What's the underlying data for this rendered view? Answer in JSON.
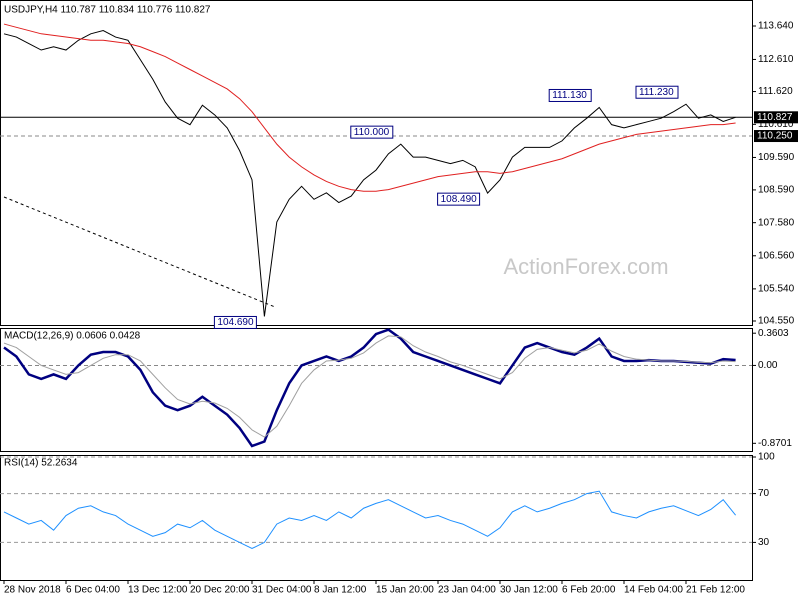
{
  "chart_data": [
    {
      "type": "line",
      "title": "USDJPY,H4 110.787 110.834 110.776 110.827",
      "watermark": "ActionForex.com",
      "ylim": [
        104.427,
        114.38
      ],
      "yticks": [
        {
          "value": 113.64,
          "label": "113.640"
        },
        {
          "value": 112.61,
          "label": "112.610"
        },
        {
          "value": 111.62,
          "label": "111.620"
        },
        {
          "value": 110.61,
          "label": "110.610"
        },
        {
          "value": 109.59,
          "label": "109.590"
        },
        {
          "value": 108.59,
          "label": "108.590"
        },
        {
          "value": 107.58,
          "label": "107.580"
        },
        {
          "value": 106.56,
          "label": "106.560"
        },
        {
          "value": 105.54,
          "label": "105.540"
        },
        {
          "value": 104.55,
          "label": "104.550"
        }
      ],
      "series": [
        {
          "name": "USDJPY",
          "color": "#000000",
          "values": [
            113.4,
            113.3,
            113.1,
            112.9,
            113.0,
            112.9,
            113.2,
            113.4,
            113.5,
            113.3,
            113.2,
            112.6,
            112.0,
            111.3,
            110.8,
            110.6,
            111.2,
            110.9,
            110.5,
            109.8,
            108.9,
            104.69,
            107.6,
            108.3,
            108.7,
            108.3,
            108.5,
            108.2,
            108.4,
            108.9,
            109.2,
            109.7,
            110.0,
            109.6,
            109.6,
            109.5,
            109.4,
            109.5,
            109.3,
            108.49,
            108.9,
            109.6,
            109.9,
            109.9,
            109.9,
            110.1,
            110.5,
            110.8,
            111.13,
            110.6,
            110.5,
            110.6,
            110.7,
            110.8,
            111.0,
            111.23,
            110.8,
            110.9,
            110.7,
            110.827
          ]
        },
        {
          "name": "MA",
          "color": "#e02020",
          "values": [
            113.7,
            113.6,
            113.5,
            113.4,
            113.35,
            113.3,
            113.25,
            113.2,
            113.2,
            113.15,
            113.1,
            113.0,
            112.85,
            112.7,
            112.5,
            112.3,
            112.1,
            111.9,
            111.7,
            111.4,
            111.0,
            110.5,
            110.0,
            109.6,
            109.3,
            109.05,
            108.85,
            108.7,
            108.6,
            108.55,
            108.55,
            108.6,
            108.7,
            108.8,
            108.9,
            109.0,
            109.05,
            109.1,
            109.15,
            109.15,
            109.1,
            109.15,
            109.25,
            109.35,
            109.45,
            109.55,
            109.7,
            109.85,
            110.0,
            110.1,
            110.2,
            110.3,
            110.35,
            110.4,
            110.45,
            110.5,
            110.55,
            110.6,
            110.6,
            110.65
          ]
        }
      ],
      "annotations": [
        {
          "index": 21,
          "value": 104.69,
          "label": "104.690"
        },
        {
          "index": 32,
          "value": 110.0,
          "label": "110.000"
        },
        {
          "index": 39,
          "value": 108.49,
          "label": "108.490"
        },
        {
          "index": 48,
          "value": 111.13,
          "label": "111.130"
        },
        {
          "index": 55,
          "value": 111.23,
          "label": "111.230"
        }
      ],
      "hlines": [
        {
          "value": 110.827,
          "label": "110.827",
          "style": "solid"
        },
        {
          "value": 110.25,
          "label": "110.250",
          "style": "dashed"
        }
      ]
    },
    {
      "type": "line",
      "title": "MACD(12,26,9) 0.0606 0.0428",
      "ylim": [
        -0.956,
        0.396
      ],
      "yticks": [
        0.3603,
        {
          "value": 0,
          "label": "0.00"
        },
        -0.8701
      ],
      "series": [
        {
          "name": "MACD",
          "color": "#000080",
          "values": [
            0.2,
            0.1,
            -0.1,
            -0.15,
            -0.1,
            -0.15,
            0.0,
            0.12,
            0.15,
            0.15,
            0.1,
            -0.05,
            -0.3,
            -0.45,
            -0.5,
            -0.45,
            -0.35,
            -0.45,
            -0.55,
            -0.7,
            -0.9,
            -0.85,
            -0.5,
            -0.2,
            0.0,
            0.05,
            0.1,
            0.05,
            0.1,
            0.2,
            0.35,
            0.4,
            0.3,
            0.15,
            0.1,
            0.05,
            0.0,
            -0.05,
            -0.1,
            -0.15,
            -0.2,
            0.0,
            0.2,
            0.25,
            0.2,
            0.15,
            0.12,
            0.2,
            0.3,
            0.1,
            0.05,
            0.05,
            0.06,
            0.05,
            0.05,
            0.04,
            0.03,
            0.02,
            0.07,
            0.0606
          ]
        },
        {
          "name": "Signal",
          "color": "#a0a0a0",
          "values": [
            0.25,
            0.2,
            0.1,
            0.0,
            -0.05,
            -0.1,
            -0.08,
            0.0,
            0.08,
            0.12,
            0.12,
            0.05,
            -0.1,
            -0.25,
            -0.38,
            -0.43,
            -0.4,
            -0.42,
            -0.48,
            -0.58,
            -0.72,
            -0.8,
            -0.68,
            -0.45,
            -0.2,
            -0.05,
            0.05,
            0.06,
            0.08,
            0.14,
            0.25,
            0.33,
            0.32,
            0.22,
            0.15,
            0.1,
            0.04,
            0.0,
            -0.05,
            -0.1,
            -0.15,
            -0.08,
            0.08,
            0.18,
            0.2,
            0.17,
            0.14,
            0.17,
            0.24,
            0.16,
            0.1,
            0.07,
            0.06,
            0.05,
            0.05,
            0.045,
            0.035,
            0.03,
            0.05,
            0.0428
          ]
        }
      ],
      "hlines": [
        {
          "value": 0,
          "style": "dashed"
        }
      ]
    },
    {
      "type": "line",
      "title": "RSI(14) 52.2634",
      "ylim": [
        0,
        100
      ],
      "yticks": [
        100,
        70,
        30
      ],
      "grid": true,
      "categories": [
        "28 Nov 2018",
        null,
        null,
        null,
        null,
        "6 Dec 04:00",
        null,
        null,
        null,
        null,
        "13 Dec 12:00",
        null,
        null,
        null,
        null,
        "20 Dec 20:00",
        null,
        null,
        null,
        null,
        "31 Dec 04:00",
        null,
        null,
        null,
        null,
        "8 Jan 12:00",
        null,
        null,
        null,
        null,
        "15 Jan 20:00",
        null,
        null,
        null,
        null,
        "23 Jan 04:00",
        null,
        null,
        null,
        null,
        "30 Jan 12:00",
        null,
        null,
        null,
        null,
        "6 Feb 20:00",
        null,
        null,
        null,
        null,
        "14 Feb 04:00",
        null,
        null,
        null,
        null,
        "21 Feb 12:00",
        null,
        null,
        null,
        null
      ],
      "series": [
        {
          "name": "RSI",
          "color": "#1e90ff",
          "values": [
            55,
            50,
            45,
            48,
            40,
            52,
            58,
            60,
            55,
            52,
            45,
            40,
            35,
            38,
            45,
            42,
            48,
            40,
            35,
            30,
            25,
            30,
            45,
            50,
            48,
            52,
            48,
            55,
            50,
            58,
            62,
            65,
            60,
            55,
            50,
            52,
            48,
            45,
            40,
            35,
            42,
            55,
            60,
            55,
            58,
            62,
            65,
            70,
            72,
            55,
            52,
            50,
            55,
            58,
            60,
            56,
            52,
            57,
            65,
            52.2634
          ]
        }
      ]
    }
  ]
}
